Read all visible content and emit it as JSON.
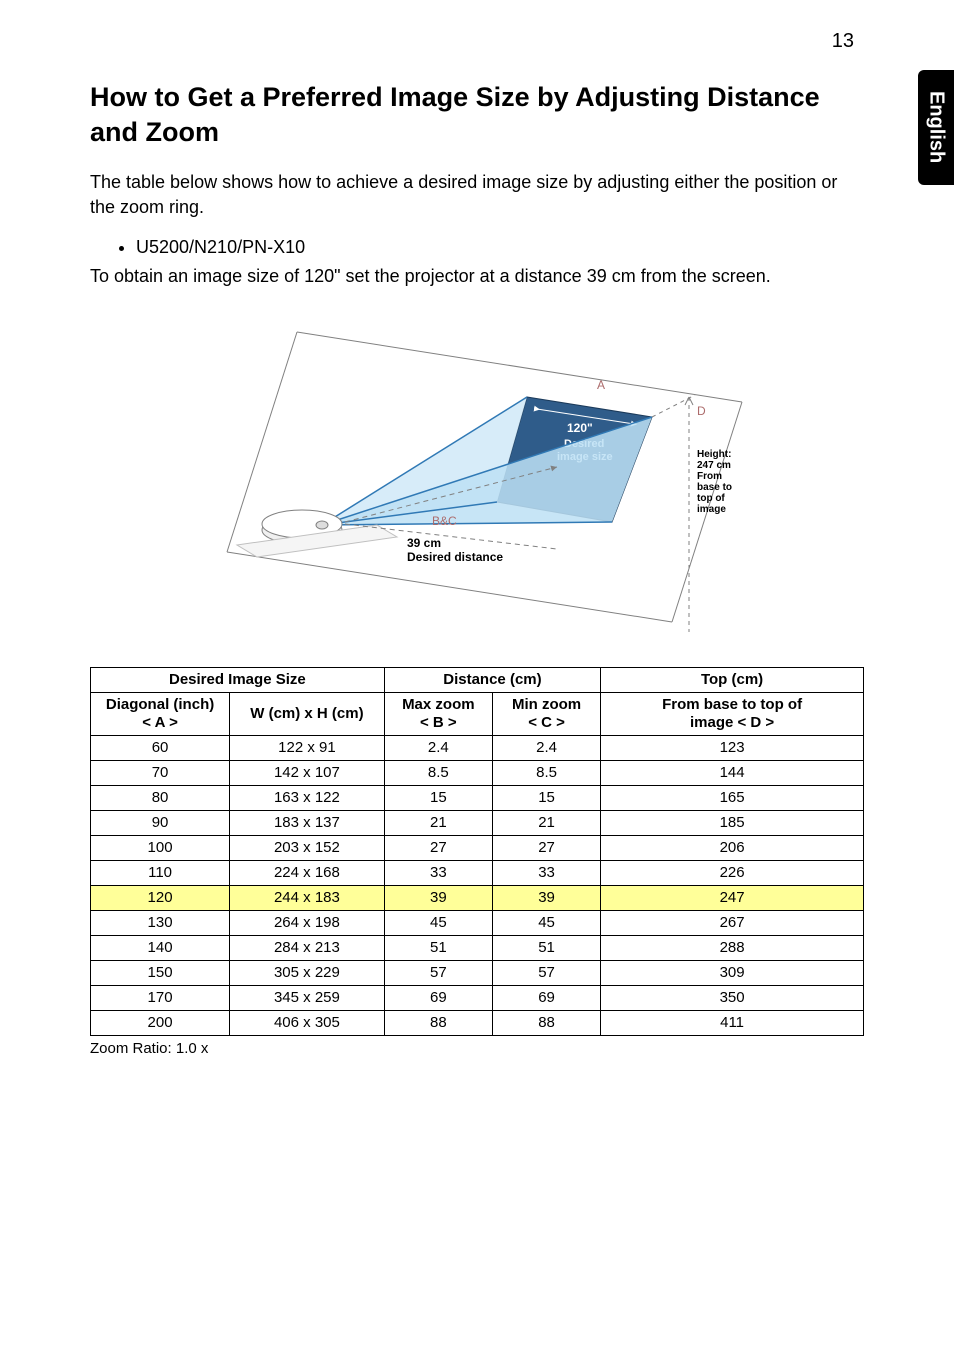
{
  "page_number": "13",
  "side_tab": "English",
  "heading": "How to Get a Preferred Image Size by Adjusting Distance and Zoom",
  "intro": "The table below shows how to achieve a desired image size by adjusting either the position or the zoom ring.",
  "bullet_model": "U5200/N210/PN-X10",
  "example": "To obtain an image size of 120\" set the projector at a distance 39 cm from the screen.",
  "diagram": {
    "label_A": "A",
    "label_BC": "B&C",
    "label_D": "D",
    "screen_title": "120\"",
    "screen_sub1": "Desired",
    "screen_sub2": "image size",
    "dist_value": "39 cm",
    "dist_label": "Desired distance",
    "height_lines": [
      "Height:",
      "247 cm",
      "From",
      "base to",
      "top of",
      "image"
    ],
    "colors": {
      "beam_fill": "#d3eaf8",
      "beam_stroke": "#3079b5",
      "screen_fill": "#2f5c8a",
      "dash": "#808080",
      "letters": "#ac6b6b",
      "projector_fill": "#f0f0f0",
      "projector_stroke": "#808080",
      "text": "#000000"
    }
  },
  "table": {
    "header_group": [
      "Desired Image Size",
      "Distance (cm)",
      "Top (cm)"
    ],
    "header_sub": {
      "diag1": "Diagonal (inch)",
      "diag2": "< A >",
      "wh": "W (cm) x H (cm)",
      "max1": "Max zoom",
      "max2": "< B >",
      "min1": "Min zoom",
      "min2": "< C >",
      "top1": "From base to top of",
      "top2": "image < D >"
    },
    "highlight_index": 6,
    "rows": [
      [
        "60",
        "122 x 91",
        "2.4",
        "2.4",
        "123"
      ],
      [
        "70",
        "142 x 107",
        "8.5",
        "8.5",
        "144"
      ],
      [
        "80",
        "163 x 122",
        "15",
        "15",
        "165"
      ],
      [
        "90",
        "183 x 137",
        "21",
        "21",
        "185"
      ],
      [
        "100",
        "203 x 152",
        "27",
        "27",
        "206"
      ],
      [
        "110",
        "224 x 168",
        "33",
        "33",
        "226"
      ],
      [
        "120",
        "244 x 183",
        "39",
        "39",
        "247"
      ],
      [
        "130",
        "264 x 198",
        "45",
        "45",
        "267"
      ],
      [
        "140",
        "284 x 213",
        "51",
        "51",
        "288"
      ],
      [
        "150",
        "305 x 229",
        "57",
        "57",
        "309"
      ],
      [
        "170",
        "345 x 259",
        "69",
        "69",
        "350"
      ],
      [
        "200",
        "406 x 305",
        "88",
        "88",
        "411"
      ]
    ]
  },
  "footnote": "Zoom Ratio: 1.0 x"
}
